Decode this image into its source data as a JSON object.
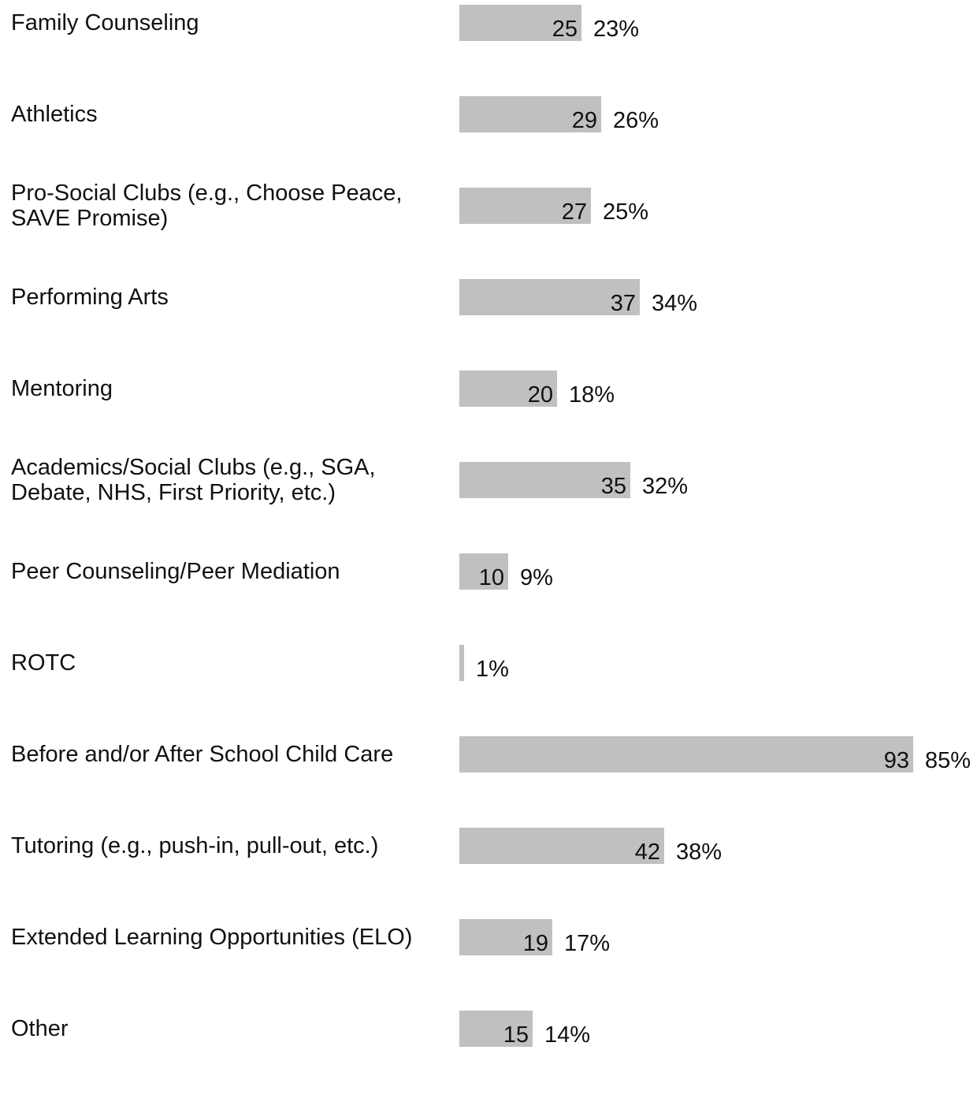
{
  "chart_data": {
    "type": "bar",
    "orientation": "horizontal",
    "categories": [
      "Family Counseling",
      "Athletics",
      "Pro-Social Clubs (e.g., Choose Peace,\nSAVE Promise)",
      "Performing Arts",
      "Mentoring",
      "Academics/Social Clubs (e.g., SGA,\nDebate, NHS, First Priority, etc.)",
      "Peer Counseling/Peer Mediation",
      "ROTC",
      "Before and/or After School Child Care",
      "Tutoring (e.g., push-in, pull-out, etc.)",
      "Extended Learning Opportunities (ELO)",
      "Other"
    ],
    "values": [
      25,
      29,
      27,
      37,
      20,
      35,
      10,
      1,
      93,
      42,
      19,
      15
    ],
    "count_labels": [
      "25",
      "29",
      "27",
      "37",
      "20",
      "35",
      "10",
      "",
      "93",
      "42",
      "19",
      "15"
    ],
    "percent_labels": [
      "23%",
      "26%",
      "25%",
      "34%",
      "18%",
      "32%",
      "9%",
      "1%",
      "85%",
      "38%",
      "17%",
      "14%"
    ],
    "title": "",
    "xlabel": "",
    "ylabel": "",
    "xlim": [
      0,
      93
    ],
    "grid": false,
    "legend": "none",
    "bar_color": "#c0c0c0",
    "text_color": "#111111"
  }
}
